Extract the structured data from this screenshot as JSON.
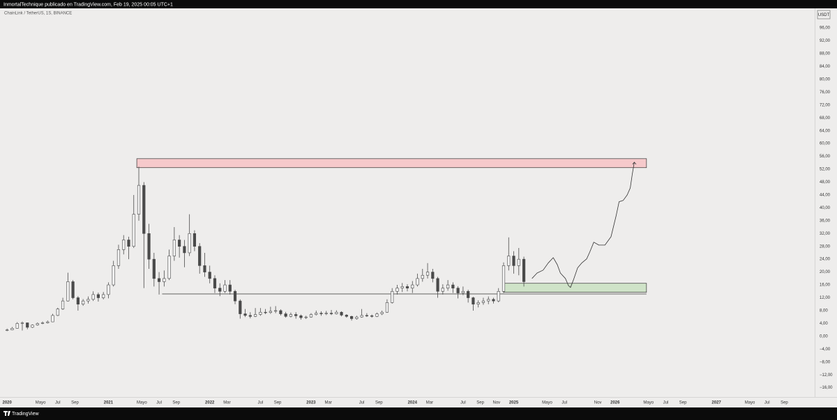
{
  "chart_data": {
    "type": "candlestick",
    "title": "InmortalTechnique publicado en TradingView.com, Feb 19, 2025 00:05 UTC+1",
    "subtitle": "ChainLink / TetherUS, 1S, BINANCE",
    "y_axis_label": "USDT",
    "footer": "TradingView",
    "grid": false,
    "up_color": "#f4f4f4",
    "down_color": "#4a4a4a",
    "wick_color": "#4a4a4a",
    "xlim": [
      2019.93,
      2027.97
    ],
    "ylim": [
      -18.9,
      102.1
    ],
    "xticks": [
      2020,
      {
        "value": 2020.33,
        "label": "Mayo"
      },
      {
        "value": 2020.5,
        "label": "Jul"
      },
      {
        "value": 2020.67,
        "label": "Sep"
      },
      2021,
      {
        "value": 2021.33,
        "label": "Mayo"
      },
      {
        "value": 2021.5,
        "label": "Jul"
      },
      {
        "value": 2021.67,
        "label": "Sep"
      },
      2022,
      {
        "value": 2022.17,
        "label": "Mar"
      },
      {
        "value": 2022.5,
        "label": "Jul"
      },
      {
        "value": 2022.67,
        "label": "Sep"
      },
      2023,
      {
        "value": 2023.17,
        "label": "Mar"
      },
      {
        "value": 2023.5,
        "label": "Jul"
      },
      {
        "value": 2023.67,
        "label": "Sep"
      },
      2024,
      {
        "value": 2024.17,
        "label": "Mar"
      },
      {
        "value": 2024.5,
        "label": "Jul"
      },
      {
        "value": 2024.67,
        "label": "Sep"
      },
      {
        "value": 2024.83,
        "label": "Nov"
      },
      2025,
      {
        "value": 2025.33,
        "label": "Mayo"
      },
      {
        "value": 2025.5,
        "label": "Jul"
      },
      {
        "value": 2025.83,
        "label": "Nov"
      },
      2026,
      {
        "value": 2026.33,
        "label": "Mayo"
      },
      {
        "value": 2026.5,
        "label": "Jul"
      },
      {
        "value": 2026.67,
        "label": "Sep"
      },
      2027,
      {
        "value": 2027.33,
        "label": "Mayo"
      },
      {
        "value": 2027.5,
        "label": "Jul"
      },
      {
        "value": 2027.67,
        "label": "Sep"
      }
    ],
    "yticks": [
      {
        "value": 96,
        "label": "96,00"
      },
      {
        "value": 92,
        "label": "92,00"
      },
      {
        "value": 88,
        "label": "88,00"
      },
      {
        "value": 84,
        "label": "84,00"
      },
      {
        "value": 80,
        "label": "80,00"
      },
      {
        "value": 76,
        "label": "76,00"
      },
      {
        "value": 72,
        "label": "72,00"
      },
      {
        "value": 68,
        "label": "68,00"
      },
      {
        "value": 64,
        "label": "64,00"
      },
      {
        "value": 60,
        "label": "60,00"
      },
      {
        "value": 56,
        "label": "56,00"
      },
      {
        "value": 52,
        "label": "52,00"
      },
      {
        "value": 48,
        "label": "48,00"
      },
      {
        "value": 44,
        "label": "44,00"
      },
      {
        "value": 40,
        "label": "40,00"
      },
      {
        "value": 36,
        "label": "36,00"
      },
      {
        "value": 32,
        "label": "32,00"
      },
      {
        "value": 28,
        "label": "28,00"
      },
      {
        "value": 24,
        "label": "24,00"
      },
      {
        "value": 20,
        "label": "20,00"
      },
      {
        "value": 16,
        "label": "16,00"
      },
      {
        "value": 12,
        "label": "12,00"
      },
      {
        "value": 8,
        "label": "8,00"
      },
      {
        "value": 4,
        "label": "4,00"
      },
      {
        "value": 0,
        "label": "0,00"
      },
      {
        "value": -4,
        "label": "−4,00"
      },
      {
        "value": -8,
        "label": "−8,00"
      },
      {
        "value": -12,
        "label": "−12,00"
      },
      {
        "value": -16,
        "label": "−16,00"
      }
    ],
    "x": [
      2020.0,
      2020.05,
      2020.1,
      2020.15,
      2020.2,
      2020.25,
      2020.3,
      2020.35,
      2020.4,
      2020.45,
      2020.5,
      2020.55,
      2020.6,
      2020.65,
      2020.7,
      2020.75,
      2020.8,
      2020.85,
      2020.9,
      2020.95,
      2021.0,
      2021.05,
      2021.1,
      2021.15,
      2021.2,
      2021.25,
      2021.3,
      2021.35,
      2021.4,
      2021.45,
      2021.5,
      2021.55,
      2021.6,
      2021.65,
      2021.7,
      2021.75,
      2021.8,
      2021.85,
      2021.9,
      2021.95,
      2022.0,
      2022.05,
      2022.1,
      2022.15,
      2022.2,
      2022.25,
      2022.3,
      2022.35,
      2022.4,
      2022.45,
      2022.5,
      2022.55,
      2022.6,
      2022.65,
      2022.7,
      2022.75,
      2022.8,
      2022.85,
      2022.9,
      2022.95,
      2023.0,
      2023.05,
      2023.1,
      2023.15,
      2023.2,
      2023.25,
      2023.3,
      2023.35,
      2023.4,
      2023.45,
      2023.5,
      2023.55,
      2023.6,
      2023.65,
      2023.7,
      2023.75,
      2023.8,
      2023.85,
      2023.9,
      2023.95,
      2024.0,
      2024.05,
      2024.1,
      2024.15,
      2024.2,
      2024.25,
      2024.3,
      2024.35,
      2024.4,
      2024.45,
      2024.5,
      2024.55,
      2024.6,
      2024.65,
      2024.7,
      2024.75,
      2024.8,
      2024.85,
      2024.9,
      2024.95,
      2025.0,
      2025.05,
      2025.1
    ],
    "ohlc": [
      [
        1.8,
        2.4,
        1.6,
        2.0
      ],
      [
        2.0,
        2.9,
        1.9,
        2.5
      ],
      [
        2.5,
        4.4,
        2.4,
        4.0
      ],
      [
        4.0,
        4.6,
        1.8,
        4.2
      ],
      [
        4.2,
        4.3,
        2.2,
        2.8
      ],
      [
        2.8,
        3.7,
        2.6,
        3.5
      ],
      [
        3.5,
        4.3,
        3.3,
        4.0
      ],
      [
        4.0,
        4.6,
        3.8,
        4.2
      ],
      [
        4.2,
        4.9,
        4.0,
        4.5
      ],
      [
        4.5,
        7.0,
        4.4,
        6.5
      ],
      [
        6.5,
        8.9,
        6.3,
        8.5
      ],
      [
        8.5,
        12.0,
        8.2,
        11.0
      ],
      [
        11.0,
        19.8,
        10.8,
        17.0
      ],
      [
        17.0,
        17.5,
        11.5,
        12.0
      ],
      [
        12.0,
        12.5,
        8.0,
        10.0
      ],
      [
        10.0,
        11.6,
        9.5,
        11.0
      ],
      [
        11.0,
        12.4,
        10.2,
        11.5
      ],
      [
        11.5,
        14.0,
        11.0,
        13.0
      ],
      [
        13.0,
        13.6,
        10.8,
        12.0
      ],
      [
        12.0,
        13.8,
        11.5,
        13.0
      ],
      [
        13.0,
        16.8,
        11.8,
        16.0
      ],
      [
        16.0,
        23.5,
        15.5,
        22.0
      ],
      [
        22.0,
        28.5,
        21.0,
        27.0
      ],
      [
        27.0,
        31.5,
        25.5,
        30.0
      ],
      [
        30.0,
        31.0,
        24.0,
        28.0
      ],
      [
        28.0,
        44.0,
        27.5,
        38.0
      ],
      [
        38.0,
        52.8,
        36.0,
        47.0
      ],
      [
        47.0,
        48.0,
        15.0,
        32.0
      ],
      [
        32.0,
        35.0,
        21.0,
        24.0
      ],
      [
        24.0,
        26.0,
        15.5,
        18.0
      ],
      [
        18.0,
        20.0,
        13.0,
        17.0
      ],
      [
        17.0,
        20.5,
        15.5,
        18.0
      ],
      [
        18.0,
        27.0,
        17.5,
        25.0
      ],
      [
        25.0,
        34.0,
        23.5,
        30.0
      ],
      [
        30.0,
        31.5,
        24.5,
        28.0
      ],
      [
        28.0,
        30.0,
        21.5,
        26.0
      ],
      [
        26.0,
        38.0,
        25.0,
        32.0
      ],
      [
        32.0,
        33.0,
        26.5,
        28.0
      ],
      [
        28.0,
        29.0,
        19.5,
        22.0
      ],
      [
        22.0,
        26.0,
        18.5,
        20.0
      ],
      [
        20.0,
        22.0,
        16.5,
        18.0
      ],
      [
        18.0,
        19.0,
        13.5,
        15.0
      ],
      [
        15.0,
        16.5,
        12.5,
        14.0
      ],
      [
        14.0,
        17.5,
        13.5,
        16.0
      ],
      [
        16.0,
        17.5,
        13.0,
        14.0
      ],
      [
        14.0,
        14.5,
        10.0,
        11.0
      ],
      [
        11.0,
        11.5,
        5.5,
        7.0
      ],
      [
        7.0,
        8.5,
        6.0,
        6.5
      ],
      [
        6.5,
        7.5,
        5.6,
        6.2
      ],
      [
        6.2,
        8.8,
        6.0,
        6.8
      ],
      [
        6.8,
        8.8,
        6.4,
        7.5
      ],
      [
        7.5,
        8.5,
        6.9,
        7.4
      ],
      [
        7.4,
        9.2,
        7.0,
        7.8
      ],
      [
        7.8,
        9.4,
        7.2,
        8.0
      ],
      [
        8.0,
        8.4,
        6.5,
        7.0
      ],
      [
        7.0,
        7.6,
        5.8,
        6.2
      ],
      [
        6.2,
        7.4,
        5.9,
        6.8
      ],
      [
        6.8,
        7.5,
        5.5,
        6.4
      ],
      [
        6.4,
        6.8,
        5.2,
        5.8
      ],
      [
        5.8,
        6.4,
        5.4,
        6.0
      ],
      [
        6.0,
        7.2,
        5.8,
        6.8
      ],
      [
        6.8,
        8.0,
        6.5,
        7.2
      ],
      [
        7.2,
        7.8,
        6.4,
        7.0
      ],
      [
        7.0,
        7.9,
        6.6,
        7.2
      ],
      [
        7.2,
        8.2,
        6.6,
        7.0
      ],
      [
        7.0,
        8.1,
        6.8,
        7.5
      ],
      [
        7.5,
        7.8,
        6.2,
        6.6
      ],
      [
        6.6,
        6.9,
        5.8,
        6.2
      ],
      [
        6.2,
        6.4,
        4.9,
        5.5
      ],
      [
        5.5,
        6.4,
        5.2,
        6.0
      ],
      [
        6.0,
        8.5,
        5.8,
        6.5
      ],
      [
        6.5,
        7.2,
        6.0,
        6.4
      ],
      [
        6.4,
        6.8,
        5.8,
        6.2
      ],
      [
        6.2,
        7.4,
        6.0,
        7.0
      ],
      [
        7.0,
        8.0,
        6.6,
        7.5
      ],
      [
        7.5,
        11.5,
        7.3,
        10.5
      ],
      [
        10.5,
        15.0,
        10.2,
        14.0
      ],
      [
        14.0,
        16.0,
        13.0,
        15.0
      ],
      [
        15.0,
        16.6,
        13.8,
        15.5
      ],
      [
        15.5,
        16.2,
        14.0,
        15.0
      ],
      [
        15.0,
        17.2,
        13.5,
        16.0
      ],
      [
        16.0,
        19.5,
        15.5,
        18.0
      ],
      [
        18.0,
        21.0,
        17.0,
        19.0
      ],
      [
        19.0,
        22.8,
        18.0,
        20.0
      ],
      [
        20.0,
        21.0,
        16.8,
        18.0
      ],
      [
        18.0,
        18.5,
        12.0,
        14.0
      ],
      [
        14.0,
        16.2,
        13.0,
        15.0
      ],
      [
        15.0,
        17.5,
        14.2,
        16.0
      ],
      [
        16.0,
        16.8,
        13.5,
        15.0
      ],
      [
        15.0,
        15.6,
        11.8,
        13.5
      ],
      [
        13.5,
        15.5,
        12.8,
        14.0
      ],
      [
        14.0,
        14.5,
        10.5,
        12.0
      ],
      [
        12.0,
        12.3,
        8.0,
        10.0
      ],
      [
        10.0,
        11.2,
        9.0,
        10.5
      ],
      [
        10.5,
        12.0,
        9.8,
        11.0
      ],
      [
        11.0,
        12.4,
        10.0,
        11.5
      ],
      [
        11.5,
        12.0,
        10.2,
        11.0
      ],
      [
        11.0,
        15.0,
        10.6,
        14.0
      ],
      [
        14.0,
        23.0,
        13.5,
        22.0
      ],
      [
        22.0,
        30.8,
        20.5,
        25.0
      ],
      [
        25.0,
        26.5,
        19.5,
        22.0
      ],
      [
        22.0,
        27.5,
        19.0,
        24.0
      ],
      [
        24.0,
        24.8,
        15.5,
        17.0
      ]
    ],
    "annotations": [
      {
        "type": "rect",
        "x": [
          2021.28,
          2026.31
        ],
        "y": [
          52.5,
          55.3
        ],
        "color": "#f6c9cb"
      },
      {
        "type": "rect",
        "x": [
          2024.9,
          2026.31
        ],
        "y": [
          13.7,
          16.5
        ],
        "color": "#cfe3c8"
      },
      {
        "type": "line",
        "x": [
          2021.53,
          2026.31
        ],
        "y": [
          13.2,
          13.2
        ],
        "color": "#333333"
      }
    ],
    "projection": {
      "color": "#333333",
      "x": [
        2025.18,
        2025.23,
        2025.29,
        2025.34,
        2025.39,
        2025.43,
        2025.46,
        2025.51,
        2025.54,
        2025.56,
        2025.59,
        2025.63,
        2025.67,
        2025.72,
        2025.75,
        2025.79,
        2025.84,
        2025.9,
        2025.96,
        2026.01,
        2026.04,
        2026.08,
        2026.12,
        2026.15,
        2026.17,
        2026.19
      ],
      "y": [
        18.0,
        19.7,
        20.6,
        22.8,
        24.5,
        22.3,
        19.7,
        18.0,
        15.8,
        15.2,
        17.6,
        21.3,
        22.8,
        24.1,
        26.2,
        29.3,
        28.4,
        28.4,
        31.0,
        37.5,
        41.9,
        42.3,
        44.0,
        46.2,
        50.5,
        54.2
      ]
    }
  }
}
